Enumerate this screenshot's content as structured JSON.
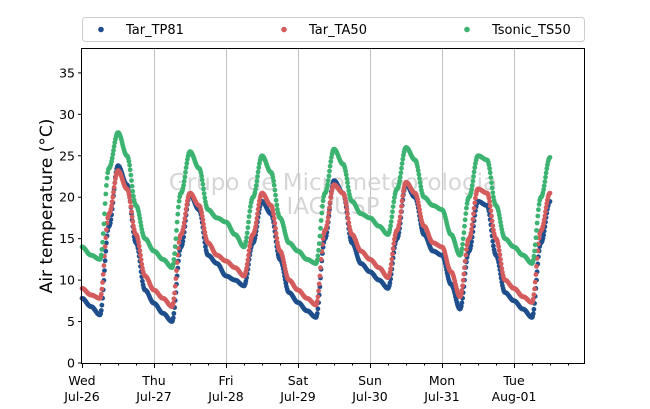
{
  "chart_data": {
    "type": "scatter",
    "ylabel": "Air temperature (°C)",
    "xlabel": "",
    "ylim": [
      0,
      38
    ],
    "xlim_days": [
      0,
      7
    ],
    "y_ticks": [
      0,
      5,
      10,
      15,
      20,
      25,
      30,
      35
    ],
    "x_ticks": [
      {
        "line1": "Wed",
        "line2": "Jul-26"
      },
      {
        "line1": "Thu",
        "line2": "Jul-27"
      },
      {
        "line1": "Fri",
        "line2": "Jul-28"
      },
      {
        "line1": "Sat",
        "line2": "Jul-29"
      },
      {
        "line1": "Sun",
        "line2": "Jul-30"
      },
      {
        "line1": "Mon",
        "line2": "Jul-31"
      },
      {
        "line1": "Tue",
        "line2": "Aug-01"
      }
    ],
    "grid": "vertical",
    "legend_position": "top",
    "watermark": [
      "Grupo de Micrometeorologia",
      "IAG/USP"
    ],
    "series": [
      {
        "name": "Tar_TP81",
        "color": "#1f4e8c",
        "points": [
          [
            "2017-07-26 00:00",
            7.8
          ],
          [
            "2017-07-26 03:00",
            6.8
          ],
          [
            "2017-07-26 06:00",
            5.8
          ],
          [
            "2017-07-26 09:00",
            16.5
          ],
          [
            "2017-07-26 12:00",
            23.8
          ],
          [
            "2017-07-26 15:00",
            21.5
          ],
          [
            "2017-07-26 18:00",
            14.5
          ],
          [
            "2017-07-26 21:00",
            8.8
          ],
          [
            "2017-07-27 00:00",
            7.2
          ],
          [
            "2017-07-27 03:00",
            6.0
          ],
          [
            "2017-07-27 06:00",
            5.0
          ],
          [
            "2017-07-27 09:00",
            14.0
          ],
          [
            "2017-07-27 12:00",
            20.3
          ],
          [
            "2017-07-27 15:00",
            18.5
          ],
          [
            "2017-07-27 18:00",
            13.0
          ],
          [
            "2017-07-27 21:00",
            12.0
          ],
          [
            "2017-07-28 00:00",
            10.5
          ],
          [
            "2017-07-28 03:00",
            10.0
          ],
          [
            "2017-07-28 06:00",
            9.3
          ],
          [
            "2017-07-28 09:00",
            14.5
          ],
          [
            "2017-07-28 12:00",
            19.5
          ],
          [
            "2017-07-28 15:00",
            18.0
          ],
          [
            "2017-07-28 18:00",
            12.5
          ],
          [
            "2017-07-28 21:00",
            8.5
          ],
          [
            "2017-07-29 00:00",
            7.3
          ],
          [
            "2017-07-29 03:00",
            6.3
          ],
          [
            "2017-07-29 06:00",
            5.5
          ],
          [
            "2017-07-29 09:00",
            15.0
          ],
          [
            "2017-07-29 12:00",
            22.0
          ],
          [
            "2017-07-29 15:00",
            20.5
          ],
          [
            "2017-07-29 18:00",
            14.5
          ],
          [
            "2017-07-29 21:00",
            12.0
          ],
          [
            "2017-07-30 00:00",
            11.0
          ],
          [
            "2017-07-30 03:00",
            10.0
          ],
          [
            "2017-07-30 06:00",
            9.0
          ],
          [
            "2017-07-30 09:00",
            15.0
          ],
          [
            "2017-07-30 12:00",
            21.5
          ],
          [
            "2017-07-30 15:00",
            20.0
          ],
          [
            "2017-07-30 18:00",
            15.5
          ],
          [
            "2017-07-30 21:00",
            13.5
          ],
          [
            "2017-07-31 00:00",
            13.0
          ],
          [
            "2017-07-31 03:00",
            9.5
          ],
          [
            "2017-07-31 06:00",
            6.5
          ],
          [
            "2017-07-31 09:00",
            13.5
          ],
          [
            "2017-07-31 12:00",
            19.5
          ],
          [
            "2017-07-31 15:00",
            19.0
          ],
          [
            "2017-07-31 18:00",
            13.0
          ],
          [
            "2017-07-31 21:00",
            8.5
          ],
          [
            "2017-08-01 00:00",
            7.5
          ],
          [
            "2017-08-01 03:00",
            6.5
          ],
          [
            "2017-08-01 06:00",
            5.5
          ],
          [
            "2017-08-01 09:00",
            14.5
          ],
          [
            "2017-08-01 12:00",
            19.5
          ]
        ]
      },
      {
        "name": "Tar_TA50",
        "color": "#d45c5c",
        "points": [
          [
            "2017-07-26 00:00",
            9.0
          ],
          [
            "2017-07-26 03:00",
            8.2
          ],
          [
            "2017-07-26 06:00",
            7.8
          ],
          [
            "2017-07-26 09:00",
            18.0
          ],
          [
            "2017-07-26 12:00",
            23.2
          ],
          [
            "2017-07-26 15:00",
            21.0
          ],
          [
            "2017-07-26 18:00",
            15.5
          ],
          [
            "2017-07-26 21:00",
            10.5
          ],
          [
            "2017-07-27 00:00",
            8.8
          ],
          [
            "2017-07-27 03:00",
            7.8
          ],
          [
            "2017-07-27 06:00",
            6.8
          ],
          [
            "2017-07-27 09:00",
            15.5
          ],
          [
            "2017-07-27 12:00",
            20.5
          ],
          [
            "2017-07-27 15:00",
            19.0
          ],
          [
            "2017-07-27 18:00",
            14.5
          ],
          [
            "2017-07-27 21:00",
            13.0
          ],
          [
            "2017-07-28 00:00",
            12.3
          ],
          [
            "2017-07-28 03:00",
            11.5
          ],
          [
            "2017-07-28 06:00",
            10.5
          ],
          [
            "2017-07-28 09:00",
            15.5
          ],
          [
            "2017-07-28 12:00",
            20.5
          ],
          [
            "2017-07-28 15:00",
            19.0
          ],
          [
            "2017-07-28 18:00",
            13.5
          ],
          [
            "2017-07-28 21:00",
            10.0
          ],
          [
            "2017-07-29 00:00",
            8.8
          ],
          [
            "2017-07-29 03:00",
            7.8
          ],
          [
            "2017-07-29 06:00",
            7.0
          ],
          [
            "2017-07-29 09:00",
            16.0
          ],
          [
            "2017-07-29 12:00",
            21.5
          ],
          [
            "2017-07-29 15:00",
            20.5
          ],
          [
            "2017-07-29 18:00",
            15.5
          ],
          [
            "2017-07-29 21:00",
            13.5
          ],
          [
            "2017-07-30 00:00",
            12.5
          ],
          [
            "2017-07-30 03:00",
            11.5
          ],
          [
            "2017-07-30 06:00",
            10.3
          ],
          [
            "2017-07-30 09:00",
            16.0
          ],
          [
            "2017-07-30 12:00",
            21.8
          ],
          [
            "2017-07-30 15:00",
            20.5
          ],
          [
            "2017-07-30 18:00",
            16.5
          ],
          [
            "2017-07-30 21:00",
            14.5
          ],
          [
            "2017-07-31 00:00",
            14.0
          ],
          [
            "2017-07-31 03:00",
            11.0
          ],
          [
            "2017-07-31 06:00",
            8.0
          ],
          [
            "2017-07-31 09:00",
            15.0
          ],
          [
            "2017-07-31 12:00",
            21.0
          ],
          [
            "2017-07-31 15:00",
            20.5
          ],
          [
            "2017-07-31 18:00",
            15.0
          ],
          [
            "2017-07-31 21:00",
            10.0
          ],
          [
            "2017-08-01 00:00",
            9.0
          ],
          [
            "2017-08-01 03:00",
            8.0
          ],
          [
            "2017-08-01 06:00",
            7.3
          ],
          [
            "2017-08-01 09:00",
            16.0
          ],
          [
            "2017-08-01 12:00",
            20.5
          ]
        ]
      },
      {
        "name": "Tsonic_TS50",
        "color": "#3cb371",
        "points": [
          [
            "2017-07-26 00:00",
            14.0
          ],
          [
            "2017-07-26 03:00",
            13.0
          ],
          [
            "2017-07-26 06:00",
            12.5
          ],
          [
            "2017-07-26 09:00",
            23.5
          ],
          [
            "2017-07-26 12:00",
            27.8
          ],
          [
            "2017-07-26 15:00",
            25.0
          ],
          [
            "2017-07-26 18:00",
            19.0
          ],
          [
            "2017-07-26 21:00",
            15.0
          ],
          [
            "2017-07-27 00:00",
            13.5
          ],
          [
            "2017-07-27 03:00",
            12.5
          ],
          [
            "2017-07-27 06:00",
            11.5
          ],
          [
            "2017-07-27 09:00",
            20.5
          ],
          [
            "2017-07-27 12:00",
            25.5
          ],
          [
            "2017-07-27 15:00",
            23.5
          ],
          [
            "2017-07-27 18:00",
            18.5
          ],
          [
            "2017-07-27 21:00",
            17.5
          ],
          [
            "2017-07-28 00:00",
            17.0
          ],
          [
            "2017-07-28 03:00",
            15.5
          ],
          [
            "2017-07-28 06:00",
            14.0
          ],
          [
            "2017-07-28 09:00",
            20.0
          ],
          [
            "2017-07-28 12:00",
            25.0
          ],
          [
            "2017-07-28 15:00",
            23.0
          ],
          [
            "2017-07-28 18:00",
            17.5
          ],
          [
            "2017-07-28 21:00",
            14.5
          ],
          [
            "2017-07-29 00:00",
            13.5
          ],
          [
            "2017-07-29 03:00",
            12.5
          ],
          [
            "2017-07-29 06:00",
            12.0
          ],
          [
            "2017-07-29 09:00",
            20.5
          ],
          [
            "2017-07-29 12:00",
            25.8
          ],
          [
            "2017-07-29 15:00",
            24.0
          ],
          [
            "2017-07-29 18:00",
            19.5
          ],
          [
            "2017-07-29 21:00",
            18.0
          ],
          [
            "2017-07-30 00:00",
            17.5
          ],
          [
            "2017-07-30 03:00",
            16.5
          ],
          [
            "2017-07-30 06:00",
            15.5
          ],
          [
            "2017-07-30 09:00",
            21.0
          ],
          [
            "2017-07-30 12:00",
            26.0
          ],
          [
            "2017-07-30 15:00",
            24.5
          ],
          [
            "2017-07-30 18:00",
            20.0
          ],
          [
            "2017-07-30 21:00",
            19.0
          ],
          [
            "2017-07-31 00:00",
            18.5
          ],
          [
            "2017-07-31 03:00",
            15.5
          ],
          [
            "2017-07-31 06:00",
            13.0
          ],
          [
            "2017-07-31 09:00",
            20.0
          ],
          [
            "2017-07-31 12:00",
            25.0
          ],
          [
            "2017-07-31 15:00",
            24.5
          ],
          [
            "2017-07-31 18:00",
            19.0
          ],
          [
            "2017-07-31 21:00",
            15.0
          ],
          [
            "2017-08-01 00:00",
            14.0
          ],
          [
            "2017-08-01 03:00",
            13.0
          ],
          [
            "2017-08-01 06:00",
            12.0
          ],
          [
            "2017-08-01 09:00",
            20.0
          ],
          [
            "2017-08-01 12:00",
            24.8
          ]
        ]
      }
    ]
  }
}
